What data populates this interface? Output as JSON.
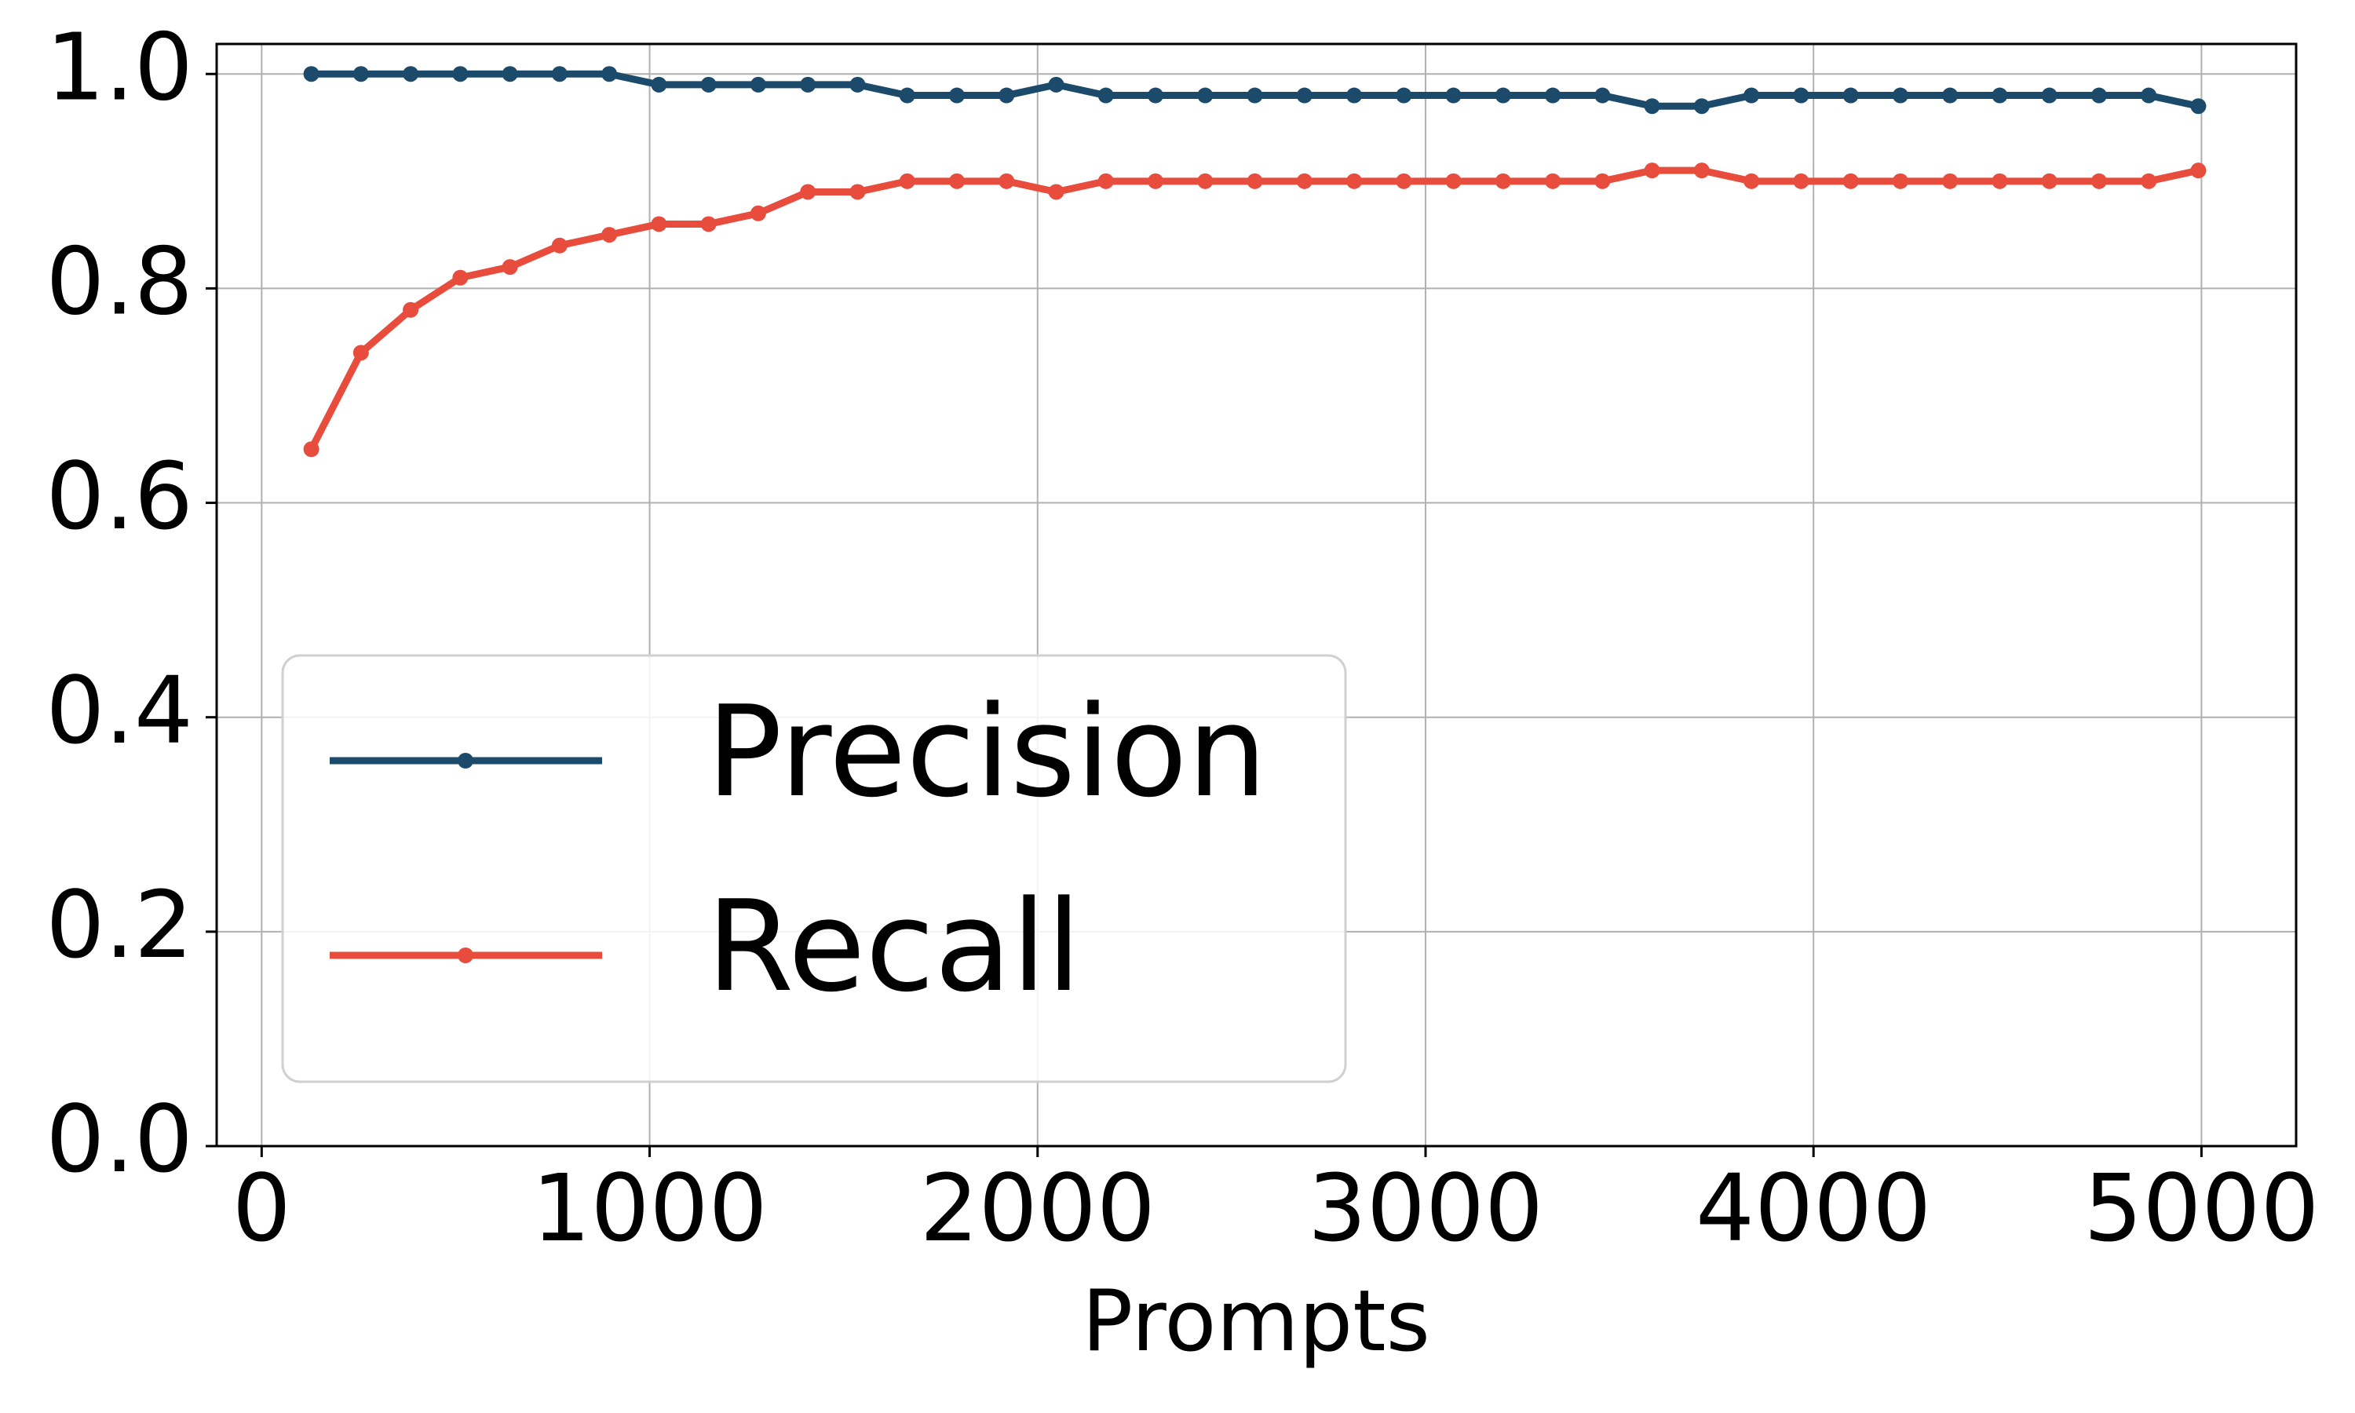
{
  "chart_data": {
    "type": "line",
    "x_label": "Prompts",
    "x": [
      128,
      256,
      384,
      512,
      640,
      768,
      896,
      1024,
      1152,
      1280,
      1408,
      1536,
      1664,
      1792,
      1920,
      2048,
      2176,
      2304,
      2432,
      2560,
      2688,
      2816,
      2944,
      3072,
      3200,
      3328,
      3456,
      3584,
      3712,
      3840,
      3968,
      4096,
      4224,
      4352,
      4480,
      4608,
      4736,
      4864,
      4992
    ],
    "series": [
      {
        "name": "Precision",
        "color": "#1b4a6b",
        "values": [
          1.0,
          1.0,
          1.0,
          1.0,
          1.0,
          1.0,
          1.0,
          0.99,
          0.99,
          0.99,
          0.99,
          0.99,
          0.98,
          0.98,
          0.98,
          0.99,
          0.98,
          0.98,
          0.98,
          0.98,
          0.98,
          0.98,
          0.98,
          0.98,
          0.98,
          0.98,
          0.98,
          0.97,
          0.97,
          0.98,
          0.98,
          0.98,
          0.98,
          0.98,
          0.98,
          0.98,
          0.98,
          0.98,
          0.97
        ]
      },
      {
        "name": "Recall",
        "color": "#e74c3c",
        "values": [
          0.65,
          0.74,
          0.78,
          0.81,
          0.82,
          0.84,
          0.85,
          0.86,
          0.86,
          0.87,
          0.89,
          0.89,
          0.9,
          0.9,
          0.9,
          0.89,
          0.9,
          0.9,
          0.9,
          0.9,
          0.9,
          0.9,
          0.9,
          0.9,
          0.9,
          0.9,
          0.9,
          0.91,
          0.91,
          0.9,
          0.9,
          0.9,
          0.9,
          0.9,
          0.9,
          0.9,
          0.9,
          0.9,
          0.91
        ]
      }
    ],
    "xlim": [
      -116,
      5244
    ],
    "ylim": [
      0,
      1.028
    ],
    "xticks": [
      0,
      1000,
      2000,
      3000,
      4000,
      5000
    ],
    "yticks": [
      {
        "value": 0,
        "label": "0.0"
      },
      0.2,
      0.4,
      0.6,
      0.8,
      {
        "value": 1,
        "label": "1.0"
      }
    ],
    "grid": true,
    "legend": "lower left"
  }
}
